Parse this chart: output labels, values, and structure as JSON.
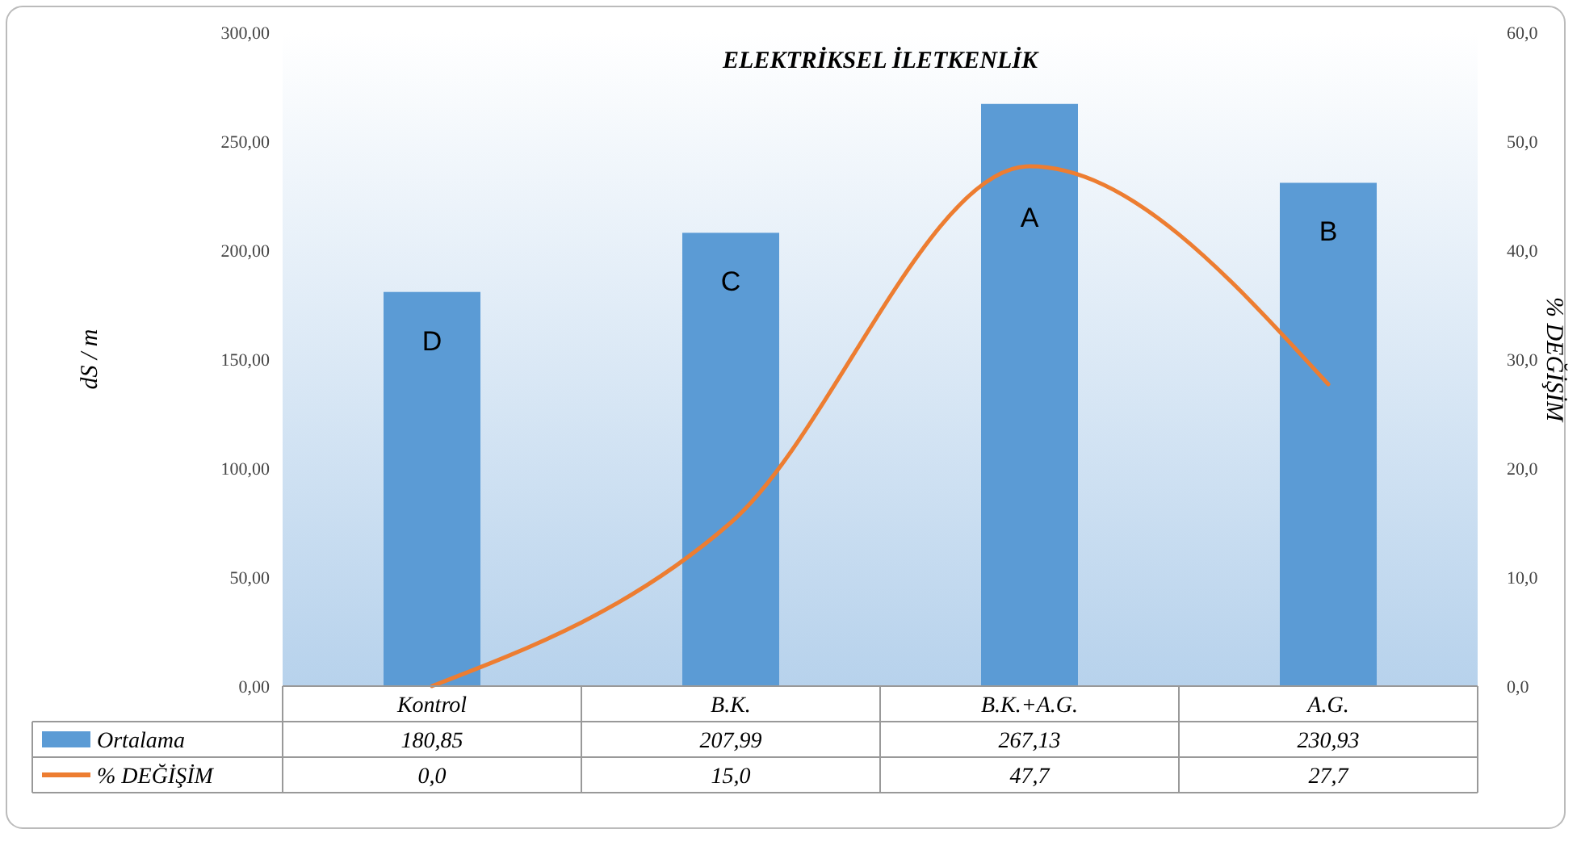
{
  "chart_data": {
    "type": "bar",
    "title": "ELEKTRİKSEL İLETKENLİK",
    "ylabel": "dS / m",
    "y2label": "% DEĞİŞİM",
    "categories": [
      "Kontrol",
      "B.K.",
      "B.K.+A.G.",
      "A.G."
    ],
    "series": [
      {
        "name": "Ortalama",
        "color": "#5b9bd5",
        "values": [
          180.85,
          207.99,
          267.13,
          230.93
        ],
        "value_labels": [
          "180,85",
          "207,99",
          "267,13",
          "230,93"
        ]
      },
      {
        "name": "% DEĞİŞİM",
        "type": "line",
        "axis": "y2",
        "color": "#ed7d31",
        "values": [
          0.0,
          15.0,
          47.7,
          27.7
        ],
        "value_labels": [
          "0,0",
          "15,0",
          "47,7",
          "27,7"
        ]
      }
    ],
    "ylim": [
      0,
      300
    ],
    "yticks": [
      {
        "value": 0,
        "label": "0,00"
      },
      {
        "value": 50,
        "label": "50,00"
      },
      {
        "value": 100,
        "label": "100,00"
      },
      {
        "value": 150,
        "label": "150,00"
      },
      {
        "value": 200,
        "label": "200,00"
      },
      {
        "value": 250,
        "label": "250,00"
      },
      {
        "value": 300,
        "label": "300,00"
      }
    ],
    "y2lim": [
      0,
      60
    ],
    "y2ticks": [
      {
        "value": 0,
        "label": "0,0"
      },
      {
        "value": 10,
        "label": "10,0"
      },
      {
        "value": 20,
        "label": "20,0"
      },
      {
        "value": 30,
        "label": "30,0"
      },
      {
        "value": 40,
        "label": "40,0"
      },
      {
        "value": 50,
        "label": "50,0"
      },
      {
        "value": 60,
        "label": "60,0"
      }
    ],
    "annotations": [
      "D",
      "C",
      "A",
      "B"
    ],
    "grid": false,
    "legend": "bottom",
    "marker": "none",
    "line_style": "solid"
  }
}
